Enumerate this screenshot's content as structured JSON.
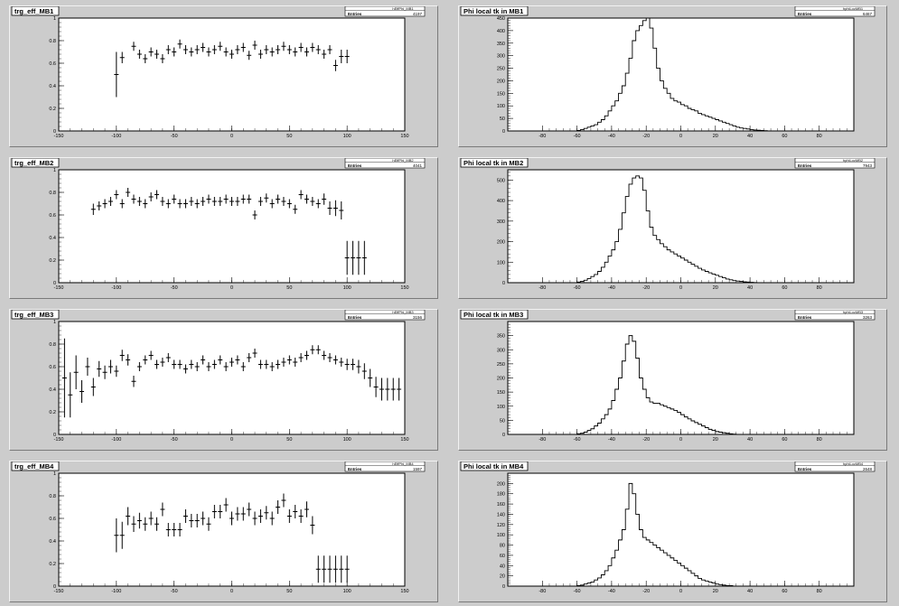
{
  "colors": {
    "background": "#cccccc",
    "frame": "#ffffff",
    "ink": "#000000"
  },
  "chart_data": [
    {
      "type": "scatter",
      "title": "trg_eff_MB1",
      "stats": {
        "name": "hEffPhi_MB1",
        "entries_label": "Entries",
        "entries": "4197"
      },
      "xlim": [
        -150,
        150
      ],
      "ylim": [
        0,
        1
      ],
      "xticks": [
        -150,
        -100,
        -50,
        0,
        50,
        100,
        150
      ],
      "yticks": [
        0,
        0.2,
        0.4,
        0.6,
        0.8,
        1
      ],
      "x": [
        -100,
        -95,
        -85,
        -80,
        -75,
        -70,
        -65,
        -60,
        -55,
        -50,
        -45,
        -40,
        -35,
        -30,
        -25,
        -20,
        -15,
        -10,
        -5,
        0,
        5,
        10,
        15,
        20,
        25,
        30,
        35,
        40,
        45,
        50,
        55,
        60,
        65,
        70,
        75,
        80,
        85,
        90,
        95,
        100
      ],
      "y": [
        0.5,
        0.65,
        0.75,
        0.68,
        0.64,
        0.7,
        0.68,
        0.64,
        0.72,
        0.7,
        0.77,
        0.72,
        0.7,
        0.72,
        0.74,
        0.7,
        0.72,
        0.75,
        0.7,
        0.68,
        0.72,
        0.74,
        0.67,
        0.76,
        0.68,
        0.72,
        0.7,
        0.72,
        0.75,
        0.72,
        0.7,
        0.74,
        0.7,
        0.74,
        0.72,
        0.68,
        0.72,
        0.58,
        0.66,
        0.66
      ],
      "yerr": [
        0.2,
        0.05,
        0.04,
        0.04,
        0.04,
        0.04,
        0.04,
        0.04,
        0.04,
        0.04,
        0.04,
        0.04,
        0.04,
        0.04,
        0.04,
        0.04,
        0.04,
        0.04,
        0.04,
        0.04,
        0.04,
        0.04,
        0.04,
        0.04,
        0.04,
        0.04,
        0.04,
        0.04,
        0.04,
        0.04,
        0.04,
        0.04,
        0.04,
        0.04,
        0.04,
        0.04,
        0.04,
        0.05,
        0.06,
        0.06
      ]
    },
    {
      "type": "histogram",
      "title": "Phi local tk in MB1",
      "stats": {
        "name": "hphiLocMB1",
        "entries_label": "Entries",
        "entries": "6467"
      },
      "xlim": [
        -100,
        100
      ],
      "ylim": [
        0,
        450
      ],
      "xticks": [
        -80,
        -60,
        -40,
        -20,
        0,
        20,
        40,
        60,
        80
      ],
      "yticks": [
        0,
        50,
        100,
        150,
        200,
        250,
        300,
        350,
        400,
        450
      ],
      "bin_start": -60,
      "bin_width": 2,
      "values": [
        2,
        5,
        10,
        15,
        20,
        25,
        35,
        45,
        60,
        80,
        100,
        120,
        150,
        180,
        230,
        290,
        360,
        400,
        420,
        440,
        450,
        410,
        330,
        250,
        200,
        170,
        150,
        130,
        120,
        115,
        105,
        100,
        90,
        85,
        80,
        70,
        65,
        60,
        55,
        50,
        45,
        40,
        35,
        30,
        25,
        20,
        15,
        12,
        10,
        8,
        5,
        4,
        3,
        2,
        1
      ]
    },
    {
      "type": "scatter",
      "title": "trg_eff_MB2",
      "stats": {
        "name": "hEffPhi_MB2",
        "entries_label": "Entries",
        "entries": "4041"
      },
      "xlim": [
        -150,
        150
      ],
      "ylim": [
        0,
        1
      ],
      "xticks": [
        -150,
        -100,
        -50,
        0,
        50,
        100,
        150
      ],
      "yticks": [
        0,
        0.2,
        0.4,
        0.6,
        0.8,
        1
      ],
      "x": [
        -120,
        -115,
        -110,
        -105,
        -100,
        -95,
        -90,
        -85,
        -80,
        -75,
        -70,
        -65,
        -60,
        -55,
        -50,
        -45,
        -40,
        -35,
        -30,
        -25,
        -20,
        -15,
        -10,
        -5,
        0,
        5,
        10,
        15,
        20,
        25,
        30,
        35,
        40,
        45,
        50,
        55,
        60,
        65,
        70,
        75,
        80,
        85,
        90,
        95,
        100,
        105,
        110,
        115
      ],
      "y": [
        0.65,
        0.68,
        0.7,
        0.72,
        0.78,
        0.7,
        0.8,
        0.74,
        0.72,
        0.7,
        0.76,
        0.78,
        0.72,
        0.7,
        0.74,
        0.7,
        0.7,
        0.72,
        0.7,
        0.72,
        0.74,
        0.72,
        0.72,
        0.74,
        0.72,
        0.72,
        0.74,
        0.74,
        0.6,
        0.72,
        0.75,
        0.7,
        0.74,
        0.72,
        0.7,
        0.65,
        0.78,
        0.74,
        0.72,
        0.7,
        0.74,
        0.66,
        0.66,
        0.64,
        0.22,
        0.22,
        0.22,
        0.22
      ],
      "yerr": [
        0.05,
        0.04,
        0.04,
        0.04,
        0.04,
        0.04,
        0.04,
        0.04,
        0.04,
        0.04,
        0.04,
        0.04,
        0.04,
        0.04,
        0.04,
        0.04,
        0.04,
        0.04,
        0.04,
        0.04,
        0.04,
        0.04,
        0.04,
        0.04,
        0.04,
        0.04,
        0.04,
        0.04,
        0.04,
        0.04,
        0.04,
        0.04,
        0.04,
        0.04,
        0.04,
        0.04,
        0.04,
        0.04,
        0.04,
        0.04,
        0.05,
        0.06,
        0.07,
        0.08,
        0.15,
        0.15,
        0.15,
        0.15
      ]
    },
    {
      "type": "histogram",
      "title": "Phi local tk in MB2",
      "stats": {
        "name": "hphiLocMB2",
        "entries_label": "Entries",
        "entries": "7943"
      },
      "xlim": [
        -100,
        100
      ],
      "ylim": [
        0,
        550
      ],
      "xticks": [
        -80,
        -60,
        -40,
        -20,
        0,
        20,
        40,
        60,
        80
      ],
      "yticks": [
        0,
        100,
        200,
        300,
        400,
        500
      ],
      "bin_start": -60,
      "bin_width": 2,
      "values": [
        3,
        6,
        12,
        20,
        30,
        40,
        55,
        75,
        100,
        130,
        160,
        200,
        260,
        340,
        420,
        480,
        510,
        520,
        510,
        450,
        350,
        270,
        230,
        210,
        190,
        175,
        160,
        150,
        140,
        130,
        120,
        110,
        100,
        90,
        80,
        70,
        62,
        55,
        48,
        42,
        36,
        30,
        24,
        18,
        14,
        10,
        8,
        6,
        4,
        3,
        2,
        1
      ]
    },
    {
      "type": "scatter",
      "title": "trg_eff_MB3",
      "stats": {
        "name": "hEffPhi_MB3",
        "entries_label": "Entries",
        "entries": "3156"
      },
      "xlim": [
        -150,
        150
      ],
      "ylim": [
        0,
        1
      ],
      "xticks": [
        -150,
        -100,
        -50,
        0,
        50,
        100,
        150
      ],
      "yticks": [
        0,
        0.2,
        0.4,
        0.6,
        0.8,
        1
      ],
      "x": [
        -145,
        -140,
        -135,
        -130,
        -125,
        -120,
        -115,
        -110,
        -105,
        -100,
        -95,
        -90,
        -85,
        -80,
        -75,
        -70,
        -65,
        -60,
        -55,
        -50,
        -45,
        -40,
        -35,
        -30,
        -25,
        -20,
        -15,
        -10,
        -5,
        0,
        5,
        10,
        15,
        20,
        25,
        30,
        35,
        40,
        45,
        50,
        55,
        60,
        65,
        70,
        75,
        80,
        85,
        90,
        95,
        100,
        105,
        110,
        115,
        120,
        125,
        130,
        135,
        140,
        145
      ],
      "y": [
        0.5,
        0.35,
        0.55,
        0.38,
        0.6,
        0.42,
        0.58,
        0.55,
        0.6,
        0.56,
        0.7,
        0.66,
        0.47,
        0.6,
        0.66,
        0.7,
        0.62,
        0.64,
        0.68,
        0.62,
        0.62,
        0.58,
        0.62,
        0.6,
        0.66,
        0.6,
        0.62,
        0.66,
        0.6,
        0.64,
        0.66,
        0.6,
        0.68,
        0.72,
        0.62,
        0.62,
        0.6,
        0.62,
        0.64,
        0.66,
        0.64,
        0.68,
        0.7,
        0.75,
        0.75,
        0.7,
        0.68,
        0.66,
        0.64,
        0.62,
        0.62,
        0.6,
        0.56,
        0.5,
        0.42,
        0.4,
        0.4,
        0.4,
        0.4
      ],
      "yerr": [
        0.35,
        0.2,
        0.15,
        0.1,
        0.08,
        0.08,
        0.07,
        0.06,
        0.06,
        0.05,
        0.05,
        0.05,
        0.05,
        0.04,
        0.04,
        0.04,
        0.04,
        0.04,
        0.04,
        0.04,
        0.04,
        0.04,
        0.04,
        0.04,
        0.04,
        0.04,
        0.04,
        0.04,
        0.04,
        0.04,
        0.04,
        0.04,
        0.04,
        0.04,
        0.04,
        0.04,
        0.04,
        0.04,
        0.04,
        0.04,
        0.04,
        0.04,
        0.04,
        0.04,
        0.04,
        0.04,
        0.04,
        0.04,
        0.04,
        0.05,
        0.05,
        0.06,
        0.07,
        0.08,
        0.09,
        0.1,
        0.1,
        0.1,
        0.1
      ]
    },
    {
      "type": "histogram",
      "title": "Phi local tk in MB3",
      "stats": {
        "name": "hphiLocMB3",
        "entries_label": "Entries",
        "entries": "3263"
      },
      "xlim": [
        -100,
        100
      ],
      "ylim": [
        0,
        400
      ],
      "xticks": [
        -80,
        -60,
        -40,
        -20,
        0,
        20,
        40,
        60,
        80
      ],
      "yticks": [
        0,
        50,
        100,
        150,
        200,
        250,
        300,
        350
      ],
      "bin_start": -60,
      "bin_width": 2,
      "values": [
        2,
        4,
        8,
        14,
        20,
        30,
        40,
        55,
        70,
        90,
        120,
        160,
        200,
        260,
        320,
        350,
        330,
        270,
        200,
        160,
        130,
        115,
        110,
        110,
        105,
        100,
        95,
        90,
        85,
        78,
        70,
        62,
        55,
        48,
        42,
        36,
        30,
        24,
        18,
        14,
        10,
        8,
        6,
        4,
        2,
        1
      ]
    },
    {
      "type": "scatter",
      "title": "trg_eff_MB4",
      "stats": {
        "name": "hEffPhi_MB4",
        "entries_label": "Entries",
        "entries": "1597"
      },
      "xlim": [
        -150,
        150
      ],
      "ylim": [
        0,
        1
      ],
      "xticks": [
        -150,
        -100,
        -50,
        0,
        50,
        100,
        150
      ],
      "yticks": [
        0,
        0.2,
        0.4,
        0.6,
        0.8,
        1
      ],
      "x": [
        -100,
        -95,
        -90,
        -85,
        -80,
        -75,
        -70,
        -65,
        -60,
        -55,
        -50,
        -45,
        -40,
        -35,
        -30,
        -25,
        -20,
        -15,
        -10,
        -5,
        0,
        5,
        10,
        15,
        20,
        25,
        30,
        35,
        40,
        45,
        50,
        55,
        60,
        65,
        70,
        75,
        80,
        85,
        90,
        95,
        100
      ],
      "y": [
        0.45,
        0.45,
        0.62,
        0.55,
        0.58,
        0.55,
        0.6,
        0.55,
        0.68,
        0.5,
        0.5,
        0.5,
        0.62,
        0.58,
        0.58,
        0.6,
        0.55,
        0.66,
        0.66,
        0.72,
        0.6,
        0.64,
        0.64,
        0.68,
        0.6,
        0.62,
        0.65,
        0.6,
        0.7,
        0.76,
        0.62,
        0.66,
        0.62,
        0.68,
        0.54,
        0.15,
        0.15,
        0.15,
        0.15,
        0.15,
        0.15
      ],
      "yerr": [
        0.15,
        0.12,
        0.08,
        0.07,
        0.07,
        0.06,
        0.06,
        0.06,
        0.06,
        0.06,
        0.06,
        0.06,
        0.06,
        0.06,
        0.06,
        0.06,
        0.06,
        0.06,
        0.06,
        0.06,
        0.06,
        0.06,
        0.06,
        0.06,
        0.06,
        0.06,
        0.06,
        0.06,
        0.06,
        0.06,
        0.06,
        0.06,
        0.06,
        0.07,
        0.08,
        0.12,
        0.12,
        0.12,
        0.12,
        0.12,
        0.12
      ]
    },
    {
      "type": "histogram",
      "title": "Phi local tk in MB4",
      "stats": {
        "name": "hphiLocMB4",
        "entries_label": "Entries",
        "entries": "2648"
      },
      "xlim": [
        -100,
        100
      ],
      "ylim": [
        0,
        220
      ],
      "xticks": [
        -80,
        -60,
        -40,
        -20,
        0,
        20,
        40,
        60,
        80
      ],
      "yticks": [
        0,
        20,
        40,
        60,
        80,
        100,
        120,
        140,
        160,
        180,
        200
      ],
      "bin_start": -60,
      "bin_width": 2,
      "values": [
        1,
        2,
        4,
        6,
        8,
        12,
        16,
        22,
        30,
        40,
        55,
        70,
        90,
        110,
        150,
        200,
        180,
        140,
        110,
        95,
        90,
        85,
        80,
        75,
        70,
        65,
        60,
        55,
        50,
        45,
        40,
        35,
        30,
        25,
        20,
        15,
        12,
        10,
        8,
        6,
        4,
        3,
        2,
        1,
        1
      ]
    }
  ]
}
